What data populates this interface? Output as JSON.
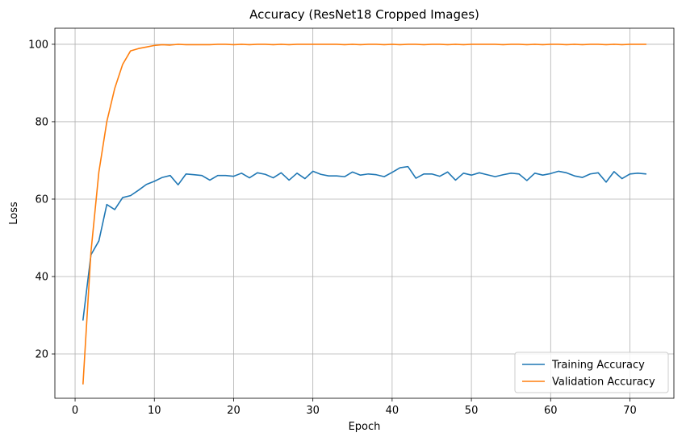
{
  "chart_data": {
    "type": "line",
    "title": "Accuracy (ResNet18 Cropped Images)",
    "xlabel": "Epoch",
    "ylabel": "Loss",
    "xlim": [
      -2.55,
      75.55
    ],
    "ylim": [
      8.55,
      104.15
    ],
    "xticks": [
      0,
      10,
      20,
      30,
      40,
      50,
      60,
      70
    ],
    "yticks": [
      20,
      40,
      60,
      80,
      100
    ],
    "grid": true,
    "legend_position": "lower right",
    "series": [
      {
        "name": "Training Accuracy",
        "color": "#1f77b4",
        "x": [
          1,
          2,
          3,
          4,
          5,
          6,
          7,
          8,
          9,
          10,
          11,
          12,
          13,
          14,
          15,
          16,
          17,
          18,
          19,
          20,
          21,
          22,
          23,
          24,
          25,
          26,
          27,
          28,
          29,
          30,
          31,
          32,
          33,
          34,
          35,
          36,
          37,
          38,
          39,
          40,
          41,
          42,
          43,
          44,
          45,
          46,
          47,
          48,
          49,
          50,
          51,
          52,
          53,
          54,
          55,
          56,
          57,
          58,
          59,
          60,
          61,
          62,
          63,
          64,
          65,
          66,
          67,
          68,
          69,
          70,
          71,
          72
        ],
        "values": [
          28.8,
          45.6,
          49.2,
          58.6,
          57.3,
          60.4,
          60.9,
          62.3,
          63.8,
          64.6,
          65.6,
          66.1,
          63.7,
          66.5,
          66.3,
          66.1,
          64.9,
          66.1,
          66.1,
          65.9,
          66.7,
          65.5,
          66.8,
          66.4,
          65.5,
          66.8,
          64.9,
          66.7,
          65.3,
          67.2,
          66.4,
          66.0,
          66.0,
          65.8,
          67.0,
          66.2,
          66.5,
          66.3,
          65.8,
          66.9,
          68.1,
          68.4,
          65.4,
          66.5,
          66.5,
          65.9,
          67.0,
          64.9,
          66.7,
          66.2,
          66.8,
          66.3,
          65.8,
          66.3,
          66.7,
          66.5,
          64.8,
          66.7,
          66.2,
          66.6,
          67.2,
          66.8,
          66.0,
          65.6,
          66.5,
          66.8,
          64.4,
          67.1,
          65.3,
          66.5,
          66.7,
          66.5
        ]
      },
      {
        "name": "Validation Accuracy",
        "color": "#ff7f0e",
        "x": [
          1,
          2,
          3,
          4,
          5,
          6,
          7,
          8,
          9,
          10,
          11,
          12,
          13,
          14,
          15,
          16,
          17,
          18,
          19,
          20,
          21,
          22,
          23,
          24,
          25,
          26,
          27,
          28,
          29,
          30,
          31,
          32,
          33,
          34,
          35,
          36,
          37,
          38,
          39,
          40,
          41,
          42,
          43,
          44,
          45,
          46,
          47,
          48,
          49,
          50,
          51,
          52,
          53,
          54,
          55,
          56,
          57,
          58,
          59,
          60,
          61,
          62,
          63,
          64,
          65,
          66,
          67,
          68,
          69,
          70,
          71,
          72
        ],
        "values": [
          12.3,
          46.3,
          67.0,
          80.0,
          88.6,
          94.8,
          98.3,
          98.9,
          99.3,
          99.7,
          99.9,
          99.8,
          100.0,
          99.9,
          99.9,
          99.9,
          99.9,
          100.0,
          100.0,
          99.9,
          100.0,
          99.9,
          100.0,
          100.0,
          99.9,
          100.0,
          99.9,
          100.0,
          100.0,
          100.0,
          100.0,
          100.0,
          100.0,
          99.9,
          100.0,
          99.9,
          100.0,
          100.0,
          99.9,
          100.0,
          99.9,
          100.0,
          100.0,
          99.9,
          100.0,
          100.0,
          99.9,
          100.0,
          99.9,
          100.0,
          100.0,
          100.0,
          100.0,
          99.9,
          100.0,
          100.0,
          99.9,
          100.0,
          99.9,
          100.0,
          100.0,
          99.9,
          100.0,
          99.9,
          100.0,
          100.0,
          99.9,
          100.0,
          99.9,
          100.0,
          100.0,
          100.0
        ]
      }
    ]
  }
}
